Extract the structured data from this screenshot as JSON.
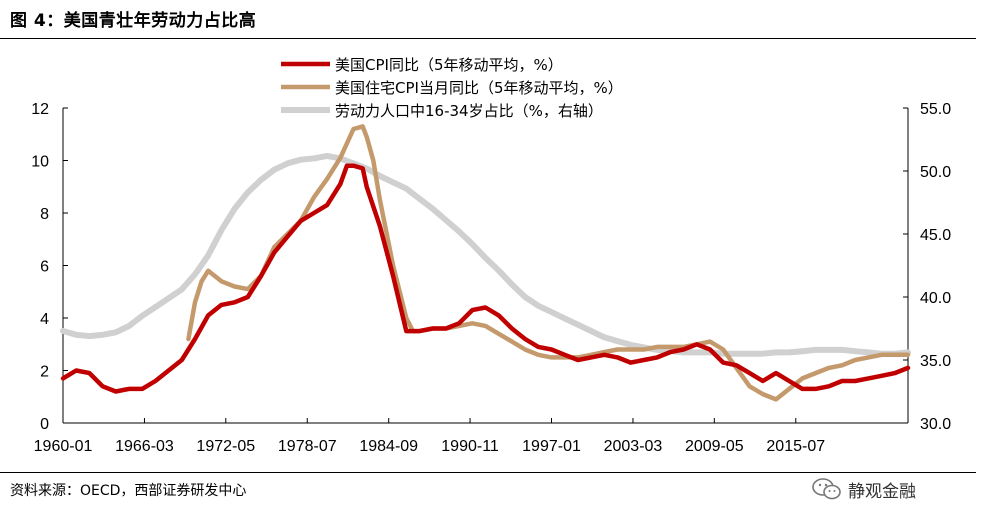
{
  "figure": {
    "title": "图 4：美国青壮年劳动力占比高",
    "source": "资料来源：OECD，西部证券研发中心",
    "watermark": "静观金融"
  },
  "chart_data": {
    "type": "line",
    "title": "美国青壮年劳动力占比高",
    "x_tick_labels": [
      "1960-01",
      "1966-03",
      "1972-05",
      "1978-07",
      "1984-09",
      "1990-11",
      "1997-01",
      "2003-03",
      "2009-05",
      "2015-07"
    ],
    "x_tick_years": [
      1960.0,
      1966.17,
      1972.33,
      1978.5,
      1984.67,
      1990.83,
      1997.0,
      2003.17,
      2009.33,
      2015.5
    ],
    "x_range": [
      1960.0,
      2024.0
    ],
    "y_left": {
      "range": [
        0,
        12
      ],
      "ticks": [
        0,
        2,
        4,
        6,
        8,
        10,
        12
      ],
      "labels": [
        "0",
        "2",
        "4",
        "6",
        "8",
        "10",
        "12"
      ]
    },
    "y_right": {
      "range": [
        30.0,
        55.0
      ],
      "ticks": [
        30,
        35,
        40,
        45,
        50,
        55
      ],
      "labels": [
        "30.0",
        "35.0",
        "40.0",
        "45.0",
        "50.0",
        "55.0"
      ]
    },
    "legend": {
      "position": "top-center"
    },
    "colors": {
      "cpi": "#c00000",
      "housing": "#c49a6c",
      "labor": "#d0d0d0"
    },
    "series": [
      {
        "key": "labor",
        "name": "劳动力人口中16-34岁占比（%，右轴）",
        "axis": "right",
        "x": [
          1960,
          1961,
          1962,
          1963,
          1964,
          1965,
          1966,
          1967,
          1968,
          1969,
          1970,
          1971,
          1972,
          1973,
          1974,
          1975,
          1976,
          1977,
          1978,
          1979,
          1980,
          1981,
          1982,
          1983,
          1984,
          1985,
          1986,
          1987,
          1988,
          1989,
          1990,
          1991,
          1992,
          1993,
          1994,
          1995,
          1996,
          1997,
          1998,
          1999,
          2000,
          2001,
          2002,
          2003,
          2004,
          2005,
          2006,
          2007,
          2008,
          2009,
          2010,
          2011,
          2012,
          2013,
          2014,
          2015,
          2016,
          2017,
          2018,
          2019,
          2020,
          2021,
          2022,
          2023,
          2024
        ],
        "values": [
          37.3,
          37.0,
          36.9,
          37.0,
          37.2,
          37.7,
          38.5,
          39.2,
          39.9,
          40.6,
          41.8,
          43.3,
          45.3,
          47.0,
          48.3,
          49.3,
          50.1,
          50.6,
          50.9,
          51.0,
          51.2,
          51.0,
          50.6,
          50.2,
          49.6,
          49.1,
          48.6,
          47.8,
          47.0,
          46.1,
          45.2,
          44.2,
          43.1,
          42.1,
          41.0,
          40.0,
          39.3,
          38.8,
          38.3,
          37.8,
          37.3,
          36.8,
          36.5,
          36.2,
          36.0,
          35.8,
          35.7,
          35.6,
          35.6,
          35.6,
          35.5,
          35.5,
          35.5,
          35.5,
          35.6,
          35.6,
          35.7,
          35.8,
          35.8,
          35.8,
          35.7,
          35.6,
          35.5,
          35.5,
          35.6
        ]
      },
      {
        "key": "housing",
        "name": "美国住宅CPI当月同比（5年移动平均，%）",
        "axis": "left",
        "x": [
          1969.5,
          1970,
          1970.5,
          1971,
          1972,
          1973,
          1974,
          1975,
          1976,
          1977,
          1978,
          1979,
          1980,
          1981,
          1982,
          1982.7,
          1983,
          1983.5,
          1984,
          1985,
          1986,
          1986.5,
          1987,
          1988,
          1989,
          1990,
          1991,
          1992,
          1993,
          1994,
          1995,
          1996,
          1997,
          1998,
          1999,
          2000,
          2001,
          2002,
          2003,
          2004,
          2005,
          2006,
          2007,
          2008,
          2009,
          2010,
          2011,
          2012,
          2013,
          2014,
          2015,
          2016,
          2017,
          2018,
          2019,
          2020,
          2021,
          2022,
          2023,
          2024
        ],
        "values": [
          3.2,
          4.6,
          5.4,
          5.8,
          5.4,
          5.2,
          5.1,
          5.6,
          6.7,
          7.2,
          7.7,
          8.6,
          9.3,
          10.1,
          11.2,
          11.3,
          10.9,
          10.0,
          8.5,
          6.0,
          4.0,
          3.5,
          3.5,
          3.6,
          3.6,
          3.7,
          3.8,
          3.7,
          3.4,
          3.1,
          2.8,
          2.6,
          2.5,
          2.5,
          2.5,
          2.6,
          2.7,
          2.8,
          2.8,
          2.8,
          2.9,
          2.9,
          2.9,
          3.0,
          3.1,
          2.8,
          2.1,
          1.4,
          1.1,
          0.9,
          1.3,
          1.7,
          1.9,
          2.1,
          2.2,
          2.4,
          2.5,
          2.6,
          2.6,
          2.6
        ]
      },
      {
        "key": "cpi",
        "name": "美国CPI同比（5年移动平均，%）",
        "axis": "left",
        "x": [
          1960,
          1961,
          1962,
          1963,
          1964,
          1965,
          1966,
          1967,
          1968,
          1969,
          1970,
          1971,
          1972,
          1973,
          1974,
          1975,
          1976,
          1977,
          1978,
          1979,
          1980,
          1981,
          1981.5,
          1982,
          1982.7,
          1983,
          1984,
          1985,
          1986,
          1987,
          1988,
          1989,
          1990,
          1991,
          1992,
          1993,
          1994,
          1995,
          1996,
          1997,
          1998,
          1999,
          2000,
          2001,
          2002,
          2003,
          2004,
          2005,
          2006,
          2007,
          2008,
          2009,
          2010,
          2011,
          2012,
          2013,
          2014,
          2015,
          2016,
          2017,
          2018,
          2019,
          2020,
          2021,
          2022,
          2023,
          2024
        ],
        "values": [
          1.7,
          2.0,
          1.9,
          1.4,
          1.2,
          1.3,
          1.3,
          1.6,
          2.0,
          2.4,
          3.2,
          4.1,
          4.5,
          4.6,
          4.8,
          5.6,
          6.5,
          7.1,
          7.7,
          8.0,
          8.3,
          9.1,
          9.8,
          9.8,
          9.7,
          9.0,
          7.5,
          5.6,
          3.5,
          3.5,
          3.6,
          3.6,
          3.8,
          4.3,
          4.4,
          4.1,
          3.6,
          3.2,
          2.9,
          2.8,
          2.6,
          2.4,
          2.5,
          2.6,
          2.5,
          2.3,
          2.4,
          2.5,
          2.7,
          2.8,
          3.0,
          2.8,
          2.3,
          2.2,
          1.9,
          1.6,
          1.9,
          1.6,
          1.3,
          1.3,
          1.4,
          1.6,
          1.6,
          1.7,
          1.8,
          1.9,
          2.1
        ]
      }
    ]
  }
}
